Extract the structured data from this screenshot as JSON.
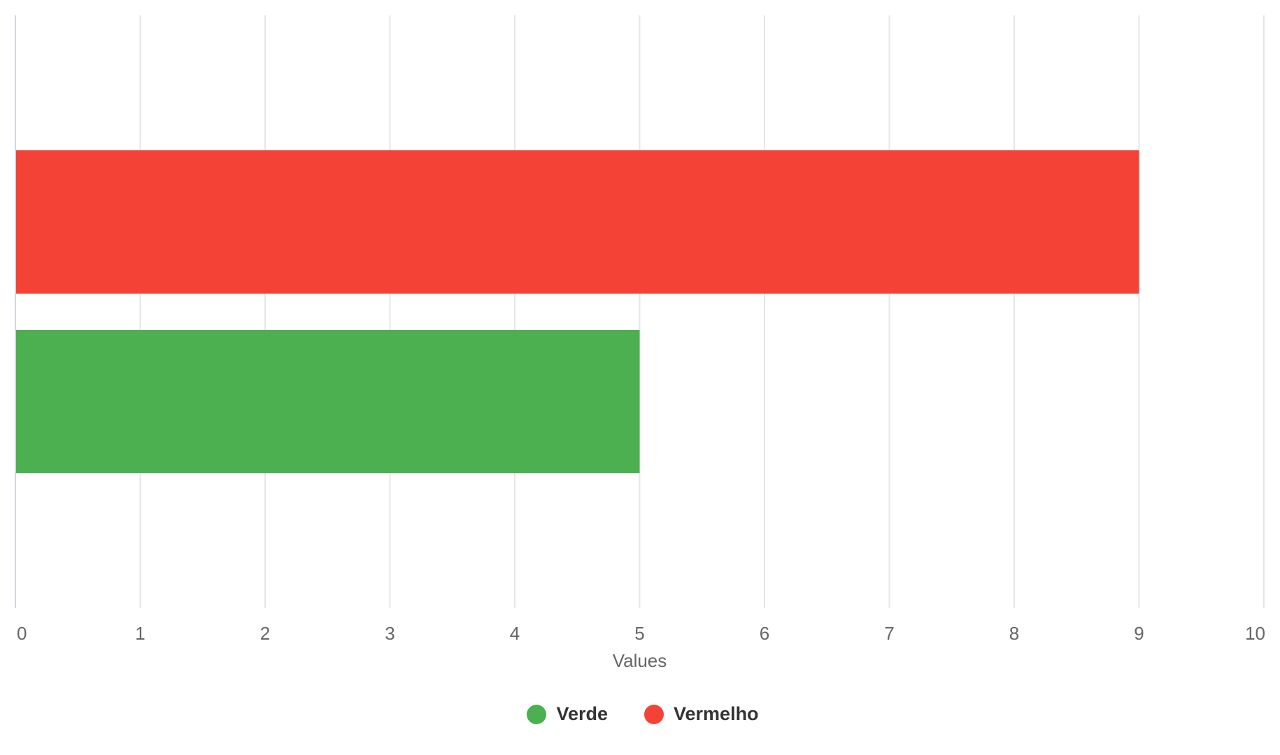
{
  "chart_data": {
    "type": "bar",
    "orientation": "horizontal",
    "title": "",
    "xlabel": "Values",
    "ylabel": "",
    "xlim": [
      0,
      10
    ],
    "x_ticks": [
      "0",
      "1",
      "2",
      "3",
      "4",
      "5",
      "6",
      "7",
      "8",
      "9",
      "10"
    ],
    "grid": true,
    "legend_position": "bottom-center",
    "series": [
      {
        "name": "Vermelho",
        "value": 9,
        "color": "#f44336"
      },
      {
        "name": "Verde",
        "value": 5,
        "color": "#4caf50"
      }
    ],
    "legend": [
      {
        "name": "Verde",
        "color": "#4caf50"
      },
      {
        "name": "Vermelho",
        "color": "#f44336"
      }
    ]
  }
}
